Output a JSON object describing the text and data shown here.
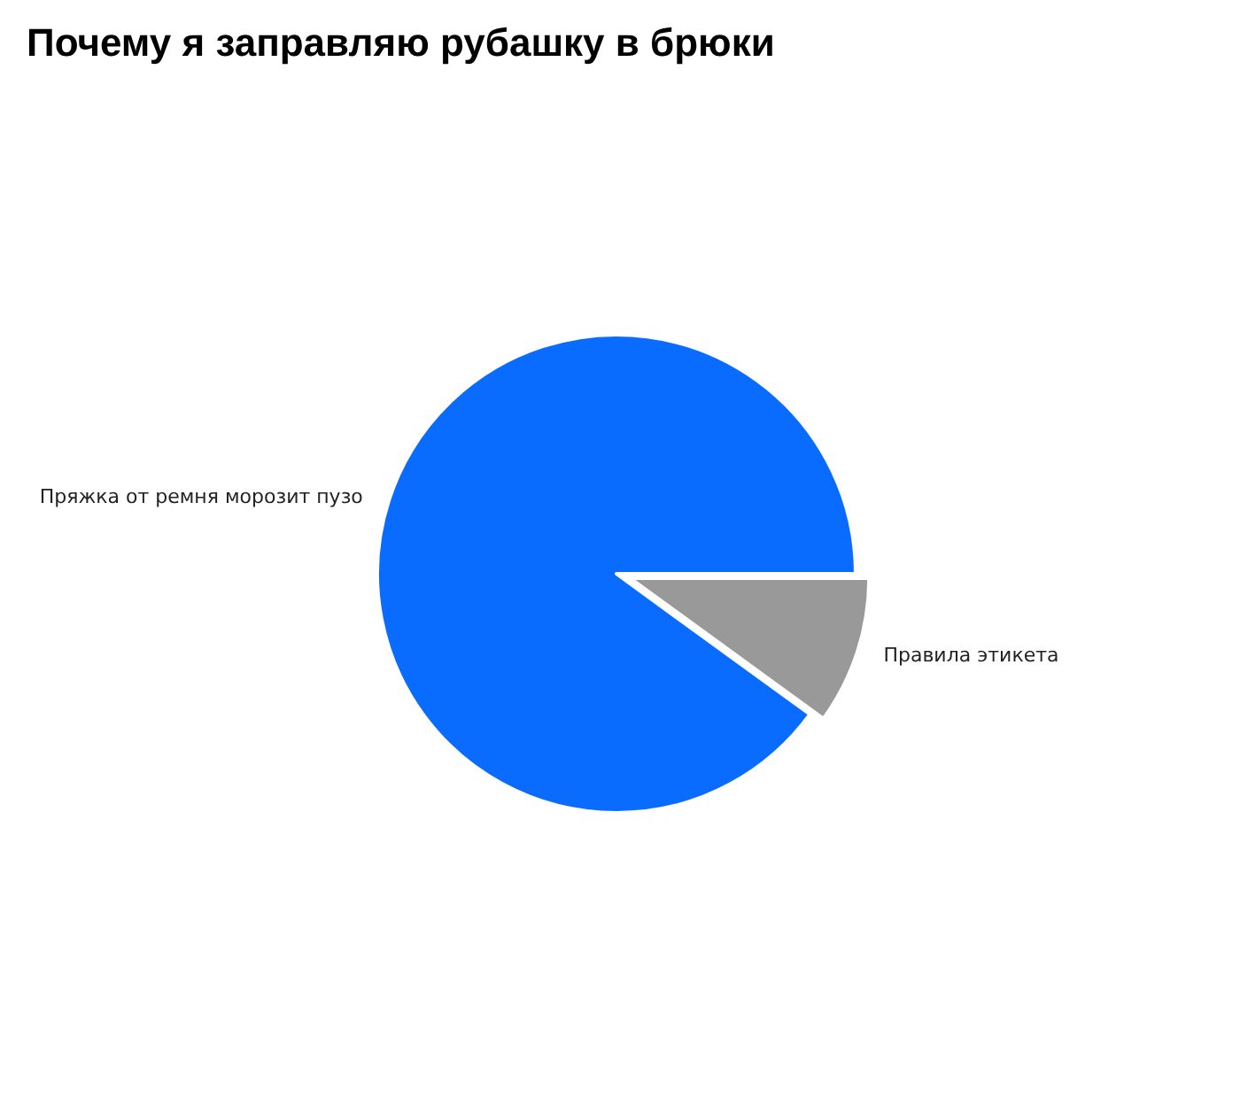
{
  "chart_data": {
    "type": "pie",
    "title": "Почему я заправляю рубашку в брюки",
    "categories": [
      "Пряжка от ремня морозит пузо",
      "Правила этикета"
    ],
    "values": [
      90,
      10
    ],
    "colors": [
      "#0a6cff",
      "#999999"
    ],
    "legend": false
  }
}
